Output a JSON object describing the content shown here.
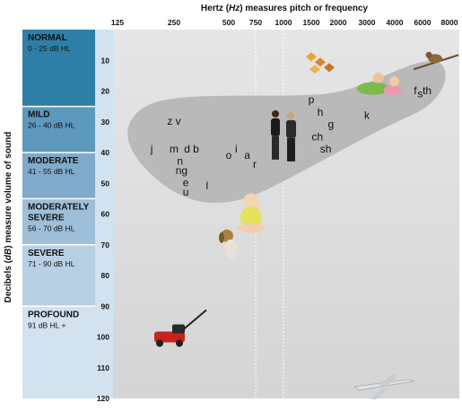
{
  "chart_data": {
    "type": "scatter",
    "title": "Hertz (Hz) measures pitch or frequency",
    "title_parts": [
      "Hertz (",
      "Hz",
      ") measures pitch or frequency"
    ],
    "xlabel": "Hertz (Hz) measures pitch or frequency",
    "ylabel": "Decibels (dB) measure volume of sound",
    "ylabel_parts": [
      "Decibels (",
      "dB",
      ") measure volume of sound"
    ],
    "x_ticks": [
      "125",
      "250",
      "500",
      "750",
      "1000",
      "1500",
      "2000",
      "3000",
      "4000",
      "6000",
      "8000"
    ],
    "y_ticks": [
      "10",
      "20",
      "30",
      "40",
      "50",
      "60",
      "70",
      "80",
      "90",
      "100",
      "110",
      "120"
    ],
    "ylim": [
      0,
      120
    ],
    "y_reversed": true,
    "bands": [
      {
        "name": "NORMAL",
        "range": "0 - 25 dB HL",
        "from": 0,
        "to": 25,
        "color": "#2e7fa8"
      },
      {
        "name": "MILD",
        "range": "26 - 40 dB HL",
        "from": 25,
        "to": 40,
        "color": "#5d98bd"
      },
      {
        "name": "MODERATE",
        "range": "41 - 55 dB HL",
        "from": 40,
        "to": 55,
        "color": "#7faacb"
      },
      {
        "name": "MODERATELY SEVERE",
        "name_lines": [
          "MODERATELY",
          "SEVERE"
        ],
        "range": "56 - 70 dB HL",
        "from": 55,
        "to": 70,
        "color": "#9ebfd9"
      },
      {
        "name": "SEVERE",
        "range": "71 - 90 dB HL",
        "from": 70,
        "to": 90,
        "color": "#b8d0e4"
      },
      {
        "name": "PROFOUND",
        "range": "91 dB HL +",
        "from": 90,
        "to": 120,
        "color": "#d2e2ef"
      }
    ],
    "speech_sounds": [
      {
        "label": "z v",
        "x": "250",
        "y": 31
      },
      {
        "label": "j",
        "x": "190",
        "y": 40
      },
      {
        "label": "m",
        "x": "250",
        "y": 40
      },
      {
        "label": "d",
        "x": "295",
        "y": 40
      },
      {
        "label": "b",
        "x": "330",
        "y": 40
      },
      {
        "label": "n",
        "x": "270",
        "y": 44
      },
      {
        "label": "ng",
        "x": "275",
        "y": 47
      },
      {
        "label": "e",
        "x": "290",
        "y": 51
      },
      {
        "label": "u",
        "x": "290",
        "y": 54
      },
      {
        "label": "l",
        "x": "380",
        "y": 52
      },
      {
        "label": "o",
        "x": "500",
        "y": 42
      },
      {
        "label": "i",
        "x": "560",
        "y": 40
      },
      {
        "label": "a",
        "x": "660",
        "y": 42
      },
      {
        "label": "r",
        "x": "740",
        "y": 45
      },
      {
        "label": "p",
        "x": "1500",
        "y": 24
      },
      {
        "label": "h",
        "x": "1650",
        "y": 28
      },
      {
        "label": "g",
        "x": "1850",
        "y": 32
      },
      {
        "label": "ch",
        "x": "1600",
        "y": 36
      },
      {
        "label": "sh",
        "x": "1750",
        "y": 40
      },
      {
        "label": "k",
        "x": "3000",
        "y": 29
      },
      {
        "label": "f",
        "x": "5400",
        "y": 21
      },
      {
        "label": "s",
        "x": "5800",
        "y": 22
      },
      {
        "label": "th",
        "x": "6300",
        "y": 21
      }
    ],
    "illustrations": [
      {
        "name": "leaves",
        "x": "1500",
        "y": 10
      },
      {
        "name": "bird",
        "x": "7000",
        "y": 10
      },
      {
        "name": "children",
        "x": "3500",
        "y": 18
      },
      {
        "name": "people-talking",
        "x": "1000",
        "y": 35
      },
      {
        "name": "baby",
        "x": "700",
        "y": 60
      },
      {
        "name": "dog",
        "x": "500",
        "y": 70
      },
      {
        "name": "lawn-mower",
        "x": "250",
        "y": 100
      },
      {
        "name": "airplane",
        "x": "3500",
        "y": 115
      }
    ],
    "grid": false,
    "dotted_verticals": [
      "750",
      "1000"
    ],
    "colors": {
      "speech_banana": "#b9b9b9",
      "plot_bg": "#dcdcdc"
    }
  }
}
